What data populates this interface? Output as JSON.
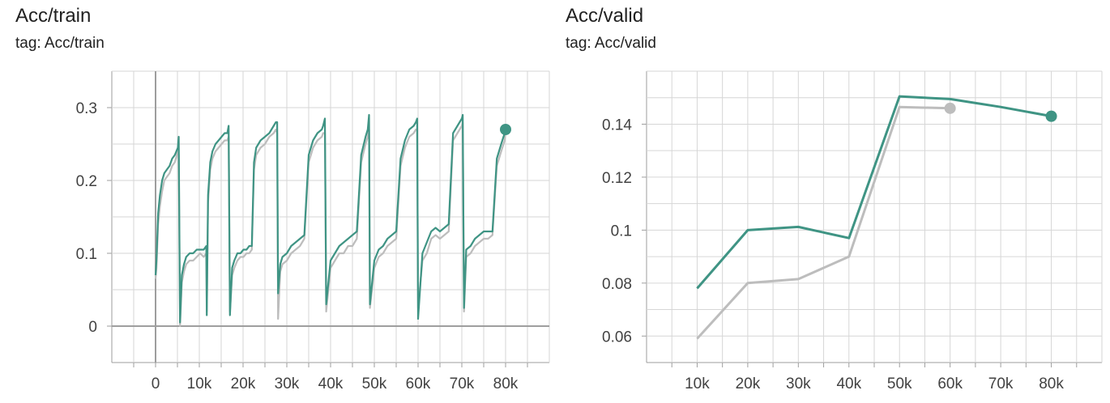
{
  "charts": {
    "acc_train": {
      "title": "Acc/train",
      "subtitle": "tag: Acc/train"
    },
    "acc_valid": {
      "title": "Acc/valid",
      "subtitle": "tag: Acc/valid"
    }
  },
  "colors": {
    "smoothed": "#3f9484",
    "raw": "#bdbdbd",
    "grid": "#d6d6d6",
    "axis": "#9e9e9e",
    "text": "#424242"
  },
  "chart_data": [
    {
      "type": "line",
      "title": "Acc/train",
      "subtitle": "tag: Acc/train",
      "xlabel": "",
      "ylabel": "",
      "xlim": [
        -10000,
        90000
      ],
      "ylim": [
        -0.05,
        0.35
      ],
      "x_ticks": [
        0,
        10000,
        20000,
        30000,
        40000,
        50000,
        60000,
        70000,
        80000
      ],
      "x_tick_labels": [
        "0",
        "10k",
        "20k",
        "30k",
        "40k",
        "50k",
        "60k",
        "70k",
        "80k"
      ],
      "y_ticks": [
        0,
        0.1,
        0.2,
        0.3
      ],
      "y_tick_labels": [
        "0",
        "0.1",
        "0.2",
        "0.3"
      ],
      "grid": true,
      "legend": "none",
      "series": [
        {
          "role": "raw",
          "x": [
            0,
            200,
            600,
            1000,
            1500,
            2000,
            2600,
            3200,
            3800,
            4400,
            5100,
            5300,
            5600,
            6000,
            6500,
            7000,
            7800,
            8600,
            9400,
            10200,
            11000,
            11600,
            11700,
            12000,
            12500,
            13000,
            13700,
            14400,
            15100,
            15800,
            16400,
            16700,
            17000,
            17500,
            18000,
            18700,
            19400,
            20100,
            20800,
            21400,
            22000,
            22500,
            23000,
            24000,
            25000,
            26000,
            27000,
            27500,
            27800,
            28000,
            28500,
            29000,
            30000,
            31000,
            32000,
            33000,
            34000,
            35000,
            36000,
            37000,
            38000,
            38300,
            38700,
            39000,
            40000,
            41000,
            42000,
            43000,
            44000,
            45000,
            46000,
            47000,
            48000,
            48500,
            48800,
            49000,
            50000,
            51000,
            52000,
            53000,
            54000,
            55000,
            56000,
            57000,
            58000,
            59000,
            59500,
            59800,
            60000,
            61000,
            62000,
            63000,
            64000,
            65000,
            66000,
            67000,
            68000,
            69000,
            70000,
            70200,
            70500,
            71000,
            72000,
            73000,
            74000,
            75000,
            76000,
            77000,
            78000,
            79000,
            79800,
            80000
          ],
          "y": [
            0.065,
            0.08,
            0.14,
            0.165,
            0.185,
            0.2,
            0.205,
            0.21,
            0.22,
            0.225,
            0.24,
            0.235,
            0.0,
            0.06,
            0.075,
            0.085,
            0.09,
            0.09,
            0.095,
            0.1,
            0.095,
            0.1,
            0.02,
            0.17,
            0.215,
            0.23,
            0.24,
            0.245,
            0.25,
            0.255,
            0.255,
            0.26,
            0.02,
            0.07,
            0.08,
            0.09,
            0.095,
            0.095,
            0.1,
            0.1,
            0.105,
            0.215,
            0.235,
            0.245,
            0.25,
            0.26,
            0.265,
            0.27,
            0.265,
            0.01,
            0.075,
            0.085,
            0.09,
            0.1,
            0.105,
            0.11,
            0.12,
            0.225,
            0.245,
            0.255,
            0.26,
            0.265,
            0.265,
            0.02,
            0.08,
            0.09,
            0.1,
            0.1,
            0.11,
            0.11,
            0.12,
            0.225,
            0.25,
            0.26,
            0.27,
            0.025,
            0.08,
            0.095,
            0.1,
            0.11,
            0.115,
            0.12,
            0.22,
            0.245,
            0.26,
            0.265,
            0.27,
            0.27,
            0.025,
            0.09,
            0.1,
            0.12,
            0.125,
            0.12,
            0.125,
            0.13,
            0.255,
            0.265,
            0.275,
            0.28,
            0.02,
            0.095,
            0.1,
            0.11,
            0.115,
            0.12,
            0.12,
            0.125,
            0.22,
            0.24,
            0.255,
            0.265
          ]
        },
        {
          "role": "smoothed",
          "x": [
            0,
            200,
            600,
            1000,
            1500,
            2000,
            2600,
            3200,
            3800,
            4400,
            5100,
            5300,
            5600,
            6000,
            6500,
            7000,
            7800,
            8600,
            9400,
            10200,
            11000,
            11600,
            11700,
            12000,
            12500,
            13000,
            13700,
            14400,
            15100,
            15800,
            16400,
            16700,
            17000,
            17500,
            18000,
            18700,
            19400,
            20100,
            20800,
            21400,
            22000,
            22500,
            23000,
            24000,
            25000,
            26000,
            27000,
            27500,
            27800,
            28000,
            28500,
            29000,
            30000,
            31000,
            32000,
            33000,
            34000,
            35000,
            36000,
            37000,
            38000,
            38300,
            38700,
            39000,
            40000,
            41000,
            42000,
            43000,
            44000,
            45000,
            46000,
            47000,
            48000,
            48500,
            48800,
            49000,
            50000,
            51000,
            52000,
            53000,
            54000,
            55000,
            56000,
            57000,
            58000,
            59000,
            59500,
            59800,
            60000,
            61000,
            62000,
            63000,
            64000,
            65000,
            66000,
            67000,
            68000,
            69000,
            70000,
            70200,
            70500,
            71000,
            72000,
            73000,
            74000,
            75000,
            76000,
            77000,
            78000,
            79000,
            79800,
            80000
          ],
          "y": [
            0.07,
            0.09,
            0.155,
            0.18,
            0.2,
            0.21,
            0.215,
            0.22,
            0.23,
            0.235,
            0.245,
            0.26,
            0.005,
            0.07,
            0.085,
            0.095,
            0.1,
            0.1,
            0.105,
            0.105,
            0.105,
            0.11,
            0.015,
            0.18,
            0.225,
            0.24,
            0.25,
            0.255,
            0.26,
            0.265,
            0.265,
            0.275,
            0.015,
            0.08,
            0.09,
            0.1,
            0.1,
            0.105,
            0.105,
            0.11,
            0.11,
            0.225,
            0.245,
            0.255,
            0.26,
            0.265,
            0.275,
            0.28,
            0.28,
            0.045,
            0.085,
            0.095,
            0.1,
            0.11,
            0.115,
            0.12,
            0.125,
            0.235,
            0.255,
            0.265,
            0.27,
            0.275,
            0.285,
            0.03,
            0.09,
            0.1,
            0.11,
            0.115,
            0.12,
            0.125,
            0.13,
            0.235,
            0.26,
            0.27,
            0.29,
            0.03,
            0.09,
            0.105,
            0.11,
            0.12,
            0.125,
            0.13,
            0.23,
            0.255,
            0.27,
            0.275,
            0.28,
            0.285,
            0.01,
            0.1,
            0.115,
            0.13,
            0.135,
            0.13,
            0.135,
            0.14,
            0.265,
            0.275,
            0.285,
            0.29,
            0.025,
            0.105,
            0.11,
            0.12,
            0.125,
            0.13,
            0.13,
            0.13,
            0.23,
            0.25,
            0.265,
            0.27
          ]
        }
      ]
    },
    {
      "type": "line",
      "title": "Acc/valid",
      "subtitle": "tag: Acc/valid",
      "xlabel": "",
      "ylabel": "",
      "xlim": [
        0,
        90000
      ],
      "ylim": [
        0.05,
        0.16
      ],
      "x_ticks": [
        10000,
        20000,
        30000,
        40000,
        50000,
        60000,
        70000,
        80000
      ],
      "x_tick_labels": [
        "10k",
        "20k",
        "30k",
        "40k",
        "50k",
        "60k",
        "70k",
        "80k"
      ],
      "y_ticks": [
        0.06,
        0.08,
        0.1,
        0.12,
        0.14
      ],
      "y_tick_labels": [
        "0.06",
        "0.08",
        "0.1",
        "0.12",
        "0.14"
      ],
      "grid": true,
      "legend": "none",
      "series": [
        {
          "role": "raw",
          "x": [
            10000,
            20000,
            30000,
            40000,
            50000,
            60000
          ],
          "y": [
            0.059,
            0.08,
            0.0815,
            0.09,
            0.1465,
            0.146
          ]
        },
        {
          "role": "smoothed",
          "x": [
            10000,
            20000,
            30000,
            40000,
            50000,
            60000,
            70000,
            80000
          ],
          "y": [
            0.078,
            0.1,
            0.1012,
            0.097,
            0.1505,
            0.1495,
            0.1465,
            0.143
          ]
        }
      ]
    }
  ]
}
